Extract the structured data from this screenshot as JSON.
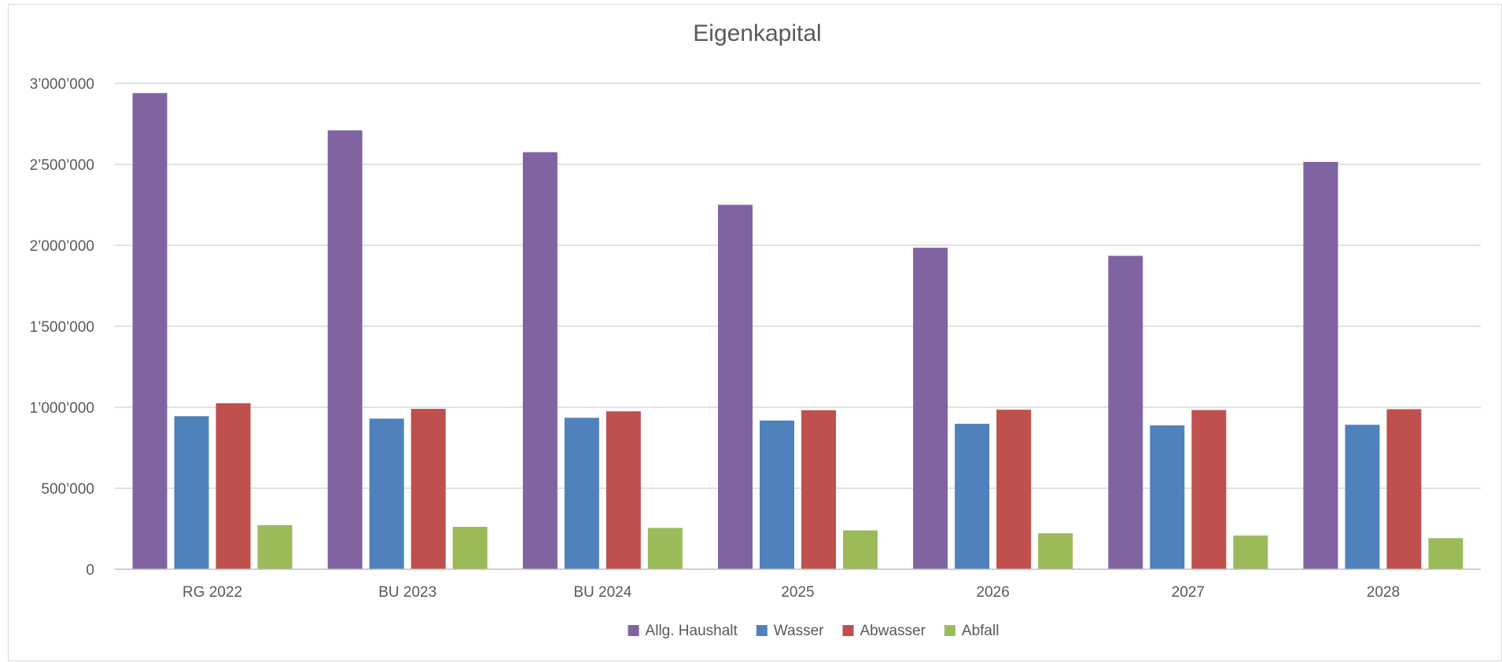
{
  "chart_data": {
    "type": "bar",
    "title": "Eigenkapital",
    "xlabel": "",
    "ylabel": "",
    "categories": [
      "RG 2022",
      "BU 2023",
      "BU 2024",
      "2025",
      "2026",
      "2027",
      "2028"
    ],
    "series": [
      {
        "name": "Allg. Haushalt",
        "color": "#8064a2",
        "values": [
          2940000,
          2710000,
          2575000,
          2250000,
          1985000,
          1935000,
          2515000
        ]
      },
      {
        "name": "Wasser",
        "color": "#4f81bd",
        "values": [
          945000,
          930000,
          935000,
          918000,
          898000,
          888000,
          892000
        ]
      },
      {
        "name": "Abwasser",
        "color": "#c0504d",
        "values": [
          1025000,
          990000,
          975000,
          982000,
          985000,
          983000,
          988000
        ]
      },
      {
        "name": "Abfall",
        "color": "#9bbb59",
        "values": [
          272000,
          262000,
          255000,
          240000,
          222000,
          208000,
          192000
        ]
      }
    ],
    "ylim": [
      0,
      3000000
    ],
    "yticks": [
      0,
      500000,
      1000000,
      1500000,
      2000000,
      2500000,
      3000000
    ],
    "ytick_labels": [
      "0",
      "500’000",
      "1’000’000",
      "1’500’000",
      "2’000’000",
      "2’500’000",
      "3’000’000"
    ],
    "grid": true,
    "legend_position": "bottom",
    "gridline_color": "#d9d9d9",
    "axis_color": "#bfbfbf"
  }
}
